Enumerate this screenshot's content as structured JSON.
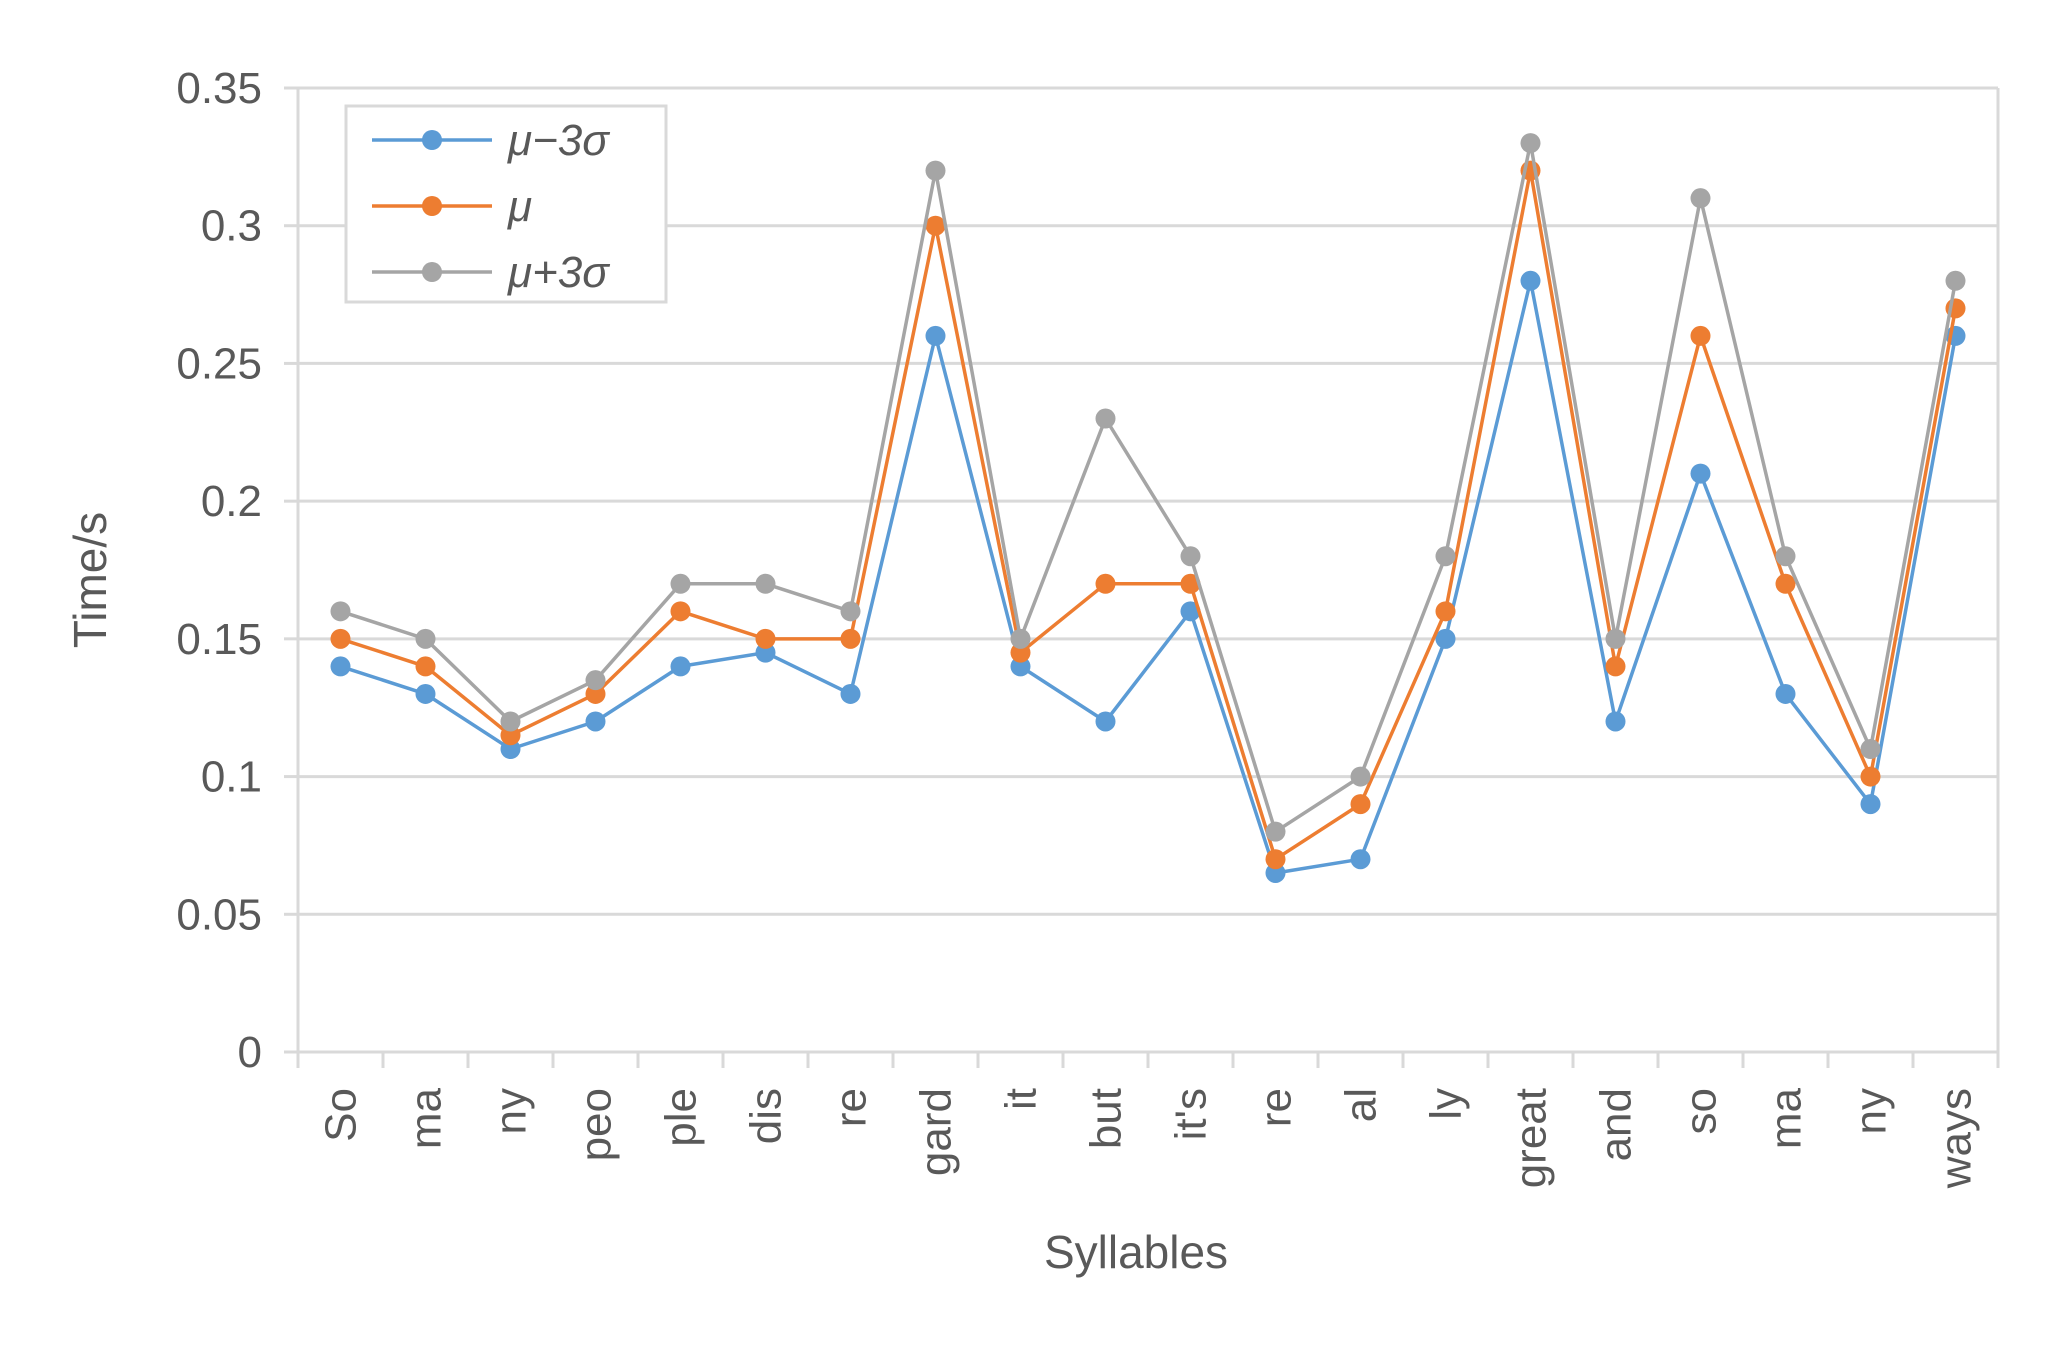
{
  "chart_data": {
    "type": "line",
    "xlabel": "Syllables",
    "ylabel": "Time/s",
    "ylim": [
      0,
      0.35
    ],
    "yticks": [
      "0",
      "0.05",
      "0.1",
      "0.15",
      "0.2",
      "0.25",
      "0.3",
      "0.35"
    ],
    "grid": "horizontal",
    "legend_position": "top-left",
    "categories": [
      "So",
      "ma",
      "ny",
      "peo",
      "ple",
      "dis",
      "re",
      "gard",
      "it",
      "but",
      "it's",
      "re",
      "al",
      "ly",
      "great",
      "and",
      "so",
      "ma",
      "ny",
      "ways"
    ],
    "series": [
      {
        "name": "μ−3σ",
        "color": "#5b9bd5",
        "values": [
          0.14,
          0.13,
          0.11,
          0.12,
          0.14,
          0.145,
          0.13,
          0.26,
          0.14,
          0.12,
          0.16,
          0.065,
          0.07,
          0.15,
          0.28,
          0.12,
          0.21,
          0.13,
          0.09,
          0.26
        ]
      },
      {
        "name": "μ",
        "color": "#ed7d31",
        "values": [
          0.15,
          0.14,
          0.115,
          0.13,
          0.16,
          0.15,
          0.15,
          0.3,
          0.145,
          0.17,
          0.17,
          0.07,
          0.09,
          0.16,
          0.32,
          0.14,
          0.26,
          0.17,
          0.1,
          0.27
        ]
      },
      {
        "name": "μ+3σ",
        "color": "#a5a5a5",
        "values": [
          0.16,
          0.15,
          0.12,
          0.135,
          0.17,
          0.17,
          0.16,
          0.32,
          0.15,
          0.23,
          0.18,
          0.08,
          0.1,
          0.18,
          0.33,
          0.15,
          0.31,
          0.18,
          0.11,
          0.28
        ]
      }
    ]
  }
}
